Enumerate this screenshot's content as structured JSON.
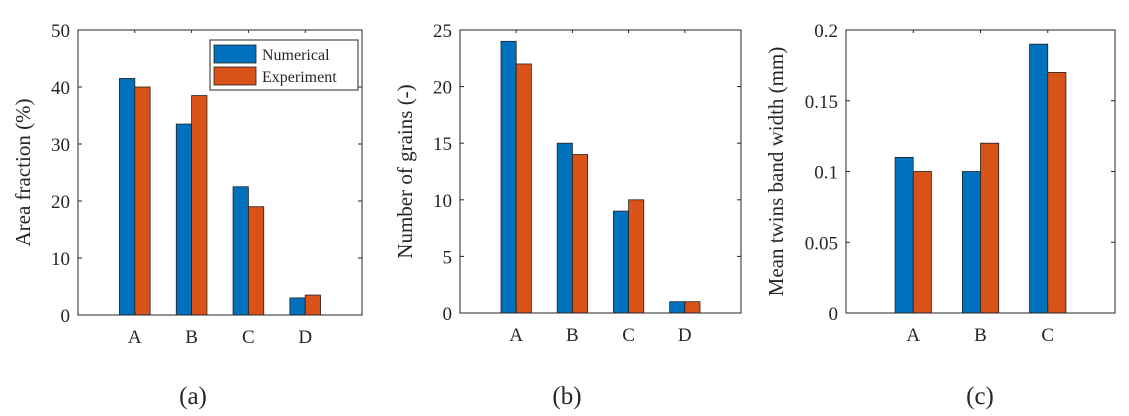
{
  "colors": {
    "numerical": "#0072BD",
    "experiment": "#D95319"
  },
  "chart_data": [
    {
      "type": "bar",
      "panel_label": "(a)",
      "categories": [
        "A",
        "B",
        "C",
        "D"
      ],
      "series": [
        {
          "name": "Numerical",
          "values": [
            41.5,
            33.5,
            22.5,
            3.0
          ]
        },
        {
          "name": "Experiment",
          "values": [
            40.0,
            38.5,
            19.0,
            3.5
          ]
        }
      ],
      "ylabel": "Area fraction (%)",
      "ylim": [
        0,
        50
      ],
      "yticks": [
        0,
        10,
        20,
        30,
        40,
        50
      ],
      "ytick_labels": [
        "0",
        "10",
        "20",
        "30",
        "40",
        "50"
      ],
      "legend": {
        "placement": "top-right",
        "entries": [
          "Numerical",
          "Experiment"
        ]
      }
    },
    {
      "type": "bar",
      "panel_label": "(b)",
      "categories": [
        "A",
        "B",
        "C",
        "D"
      ],
      "series": [
        {
          "name": "Numerical",
          "values": [
            24,
            15,
            9,
            1
          ]
        },
        {
          "name": "Experiment",
          "values": [
            22,
            14,
            10,
            1
          ]
        }
      ],
      "ylabel": "Number of grains (-)",
      "ylim": [
        0,
        25
      ],
      "yticks": [
        0,
        5,
        10,
        15,
        20,
        25
      ],
      "ytick_labels": [
        "0",
        "5",
        "10",
        "15",
        "20",
        "25"
      ]
    },
    {
      "type": "bar",
      "panel_label": "(c)",
      "categories": [
        "A",
        "B",
        "C"
      ],
      "series": [
        {
          "name": "Numerical",
          "values": [
            0.11,
            0.1,
            0.19
          ]
        },
        {
          "name": "Experiment",
          "values": [
            0.1,
            0.12,
            0.17
          ]
        }
      ],
      "ylabel": "Mean twins band width (mm)",
      "ylim": [
        0,
        0.2
      ],
      "yticks": [
        0,
        0.05,
        0.1,
        0.15,
        0.2
      ],
      "ytick_labels": [
        "0",
        "0.05",
        "0.1",
        "0.15",
        "0.2"
      ]
    }
  ]
}
